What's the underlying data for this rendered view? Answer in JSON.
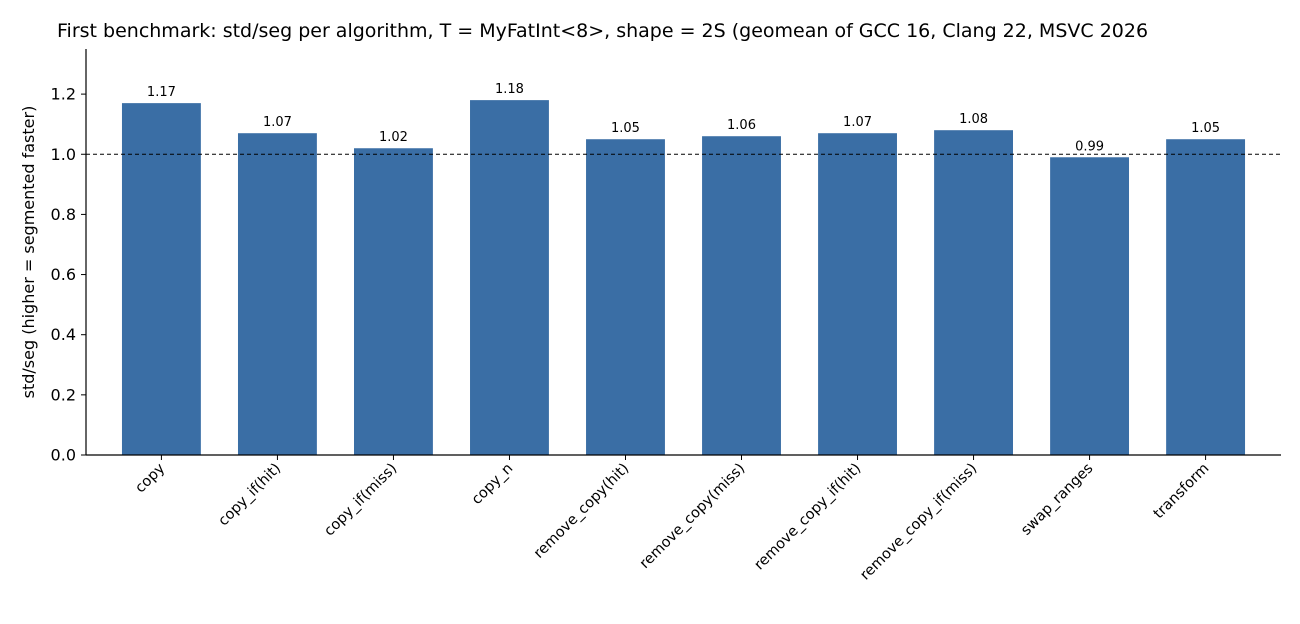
{
  "chart_data": {
    "type": "bar",
    "title": "First benchmark: std/seg per algorithm, T = MyFatInt<8>, shape = 2S (geomean of GCC 16, Clang 22, MSVC 2026",
    "xlabel": "",
    "ylabel": "std/seg  (higher = segmented faster)",
    "categories": [
      "copy",
      "copy_if(hit)",
      "copy_if(miss)",
      "copy_n",
      "remove_copy(hit)",
      "remove_copy(miss)",
      "remove_copy_if(hit)",
      "remove_copy_if(miss)",
      "swap_ranges",
      "transform"
    ],
    "values": [
      1.17,
      1.07,
      1.02,
      1.18,
      1.05,
      1.06,
      1.07,
      1.08,
      0.99,
      1.05
    ],
    "data_labels": [
      "1.17",
      "1.07",
      "1.02",
      "1.18",
      "1.05",
      "1.06",
      "1.07",
      "1.08",
      "0.99",
      "1.05"
    ],
    "ylim": [
      0,
      1.35
    ],
    "yticks": [
      "0.0",
      "0.2",
      "0.4",
      "0.6",
      "0.8",
      "1.0",
      "1.2"
    ],
    "reference_line": 1.0,
    "grid": false,
    "bar_color": "#3a6ea5"
  }
}
